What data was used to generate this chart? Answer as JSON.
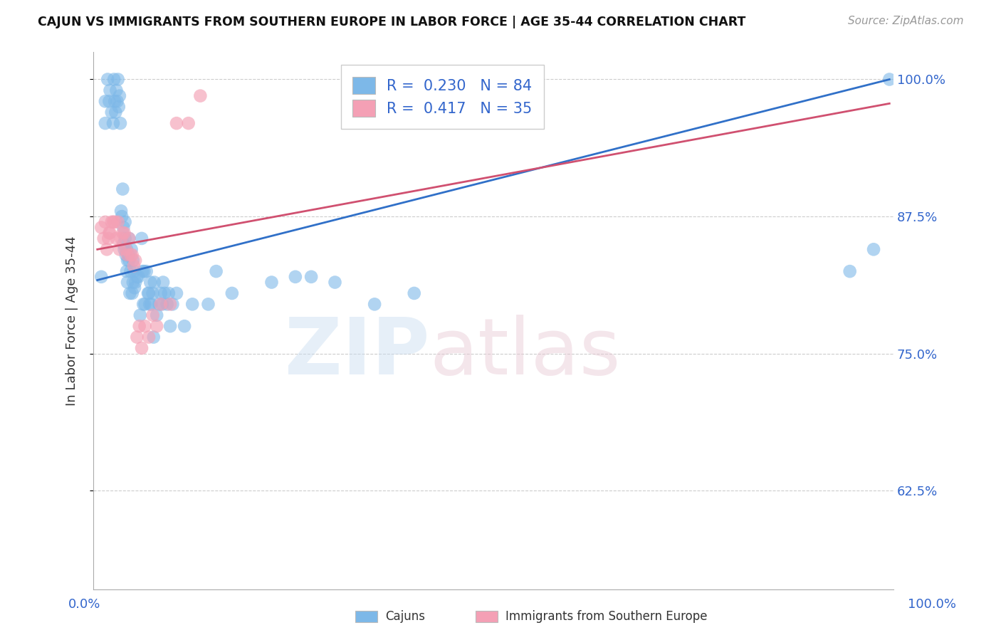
{
  "title": "CAJUN VS IMMIGRANTS FROM SOUTHERN EUROPE IN LABOR FORCE | AGE 35-44 CORRELATION CHART",
  "source": "Source: ZipAtlas.com",
  "ylabel": "In Labor Force | Age 35-44",
  "ytick_labels": [
    "62.5%",
    "75.0%",
    "87.5%",
    "100.0%"
  ],
  "ytick_values": [
    0.625,
    0.75,
    0.875,
    1.0
  ],
  "xlim": [
    -0.005,
    1.005
  ],
  "ylim": [
    0.535,
    1.025
  ],
  "cajun_color": "#7DB8E8",
  "cajun_edge_color": "#5090C8",
  "immigrant_color": "#F4A0B5",
  "immigrant_edge_color": "#D06080",
  "cajun_line_color": "#3070C8",
  "immigrant_line_color": "#D05070",
  "legend_R_cajun": "0.230",
  "legend_N_cajun": "84",
  "legend_R_immigrant": "0.417",
  "legend_N_immigrant": "35",
  "cajun_points_x": [
    0.005,
    0.01,
    0.01,
    0.013,
    0.015,
    0.016,
    0.018,
    0.02,
    0.021,
    0.022,
    0.023,
    0.024,
    0.025,
    0.026,
    0.027,
    0.028,
    0.029,
    0.03,
    0.031,
    0.032,
    0.033,
    0.033,
    0.034,
    0.035,
    0.035,
    0.036,
    0.037,
    0.037,
    0.038,
    0.038,
    0.039,
    0.04,
    0.04,
    0.041,
    0.042,
    0.043,
    0.044,
    0.045,
    0.045,
    0.046,
    0.047,
    0.048,
    0.05,
    0.052,
    0.054,
    0.056,
    0.057,
    0.058,
    0.059,
    0.06,
    0.062,
    0.064,
    0.065,
    0.066,
    0.067,
    0.068,
    0.07,
    0.071,
    0.072,
    0.075,
    0.078,
    0.08,
    0.082,
    0.083,
    0.085,
    0.088,
    0.09,
    0.092,
    0.095,
    0.1,
    0.11,
    0.12,
    0.14,
    0.15,
    0.17,
    0.22,
    0.25,
    0.27,
    0.3,
    0.35,
    0.4,
    0.95,
    0.98,
    1.0
  ],
  "cajun_points_y": [
    0.82,
    0.96,
    0.98,
    1.0,
    0.98,
    0.99,
    0.97,
    0.96,
    1.0,
    0.98,
    0.97,
    0.99,
    0.98,
    1.0,
    0.975,
    0.985,
    0.96,
    0.88,
    0.875,
    0.9,
    0.85,
    0.865,
    0.845,
    0.855,
    0.87,
    0.84,
    0.825,
    0.845,
    0.815,
    0.835,
    0.84,
    0.835,
    0.855,
    0.805,
    0.825,
    0.845,
    0.805,
    0.815,
    0.835,
    0.825,
    0.81,
    0.815,
    0.82,
    0.82,
    0.785,
    0.855,
    0.825,
    0.795,
    0.825,
    0.795,
    0.825,
    0.805,
    0.805,
    0.795,
    0.815,
    0.795,
    0.805,
    0.765,
    0.815,
    0.785,
    0.795,
    0.805,
    0.795,
    0.815,
    0.805,
    0.795,
    0.805,
    0.775,
    0.795,
    0.805,
    0.775,
    0.795,
    0.795,
    0.825,
    0.805,
    0.815,
    0.82,
    0.82,
    0.815,
    0.795,
    0.805,
    0.825,
    0.845,
    1.0
  ],
  "immigrant_points_x": [
    0.005,
    0.008,
    0.01,
    0.012,
    0.014,
    0.015,
    0.016,
    0.018,
    0.02,
    0.022,
    0.024,
    0.026,
    0.028,
    0.03,
    0.032,
    0.034,
    0.036,
    0.038,
    0.04,
    0.042,
    0.044,
    0.046,
    0.048,
    0.05,
    0.053,
    0.056,
    0.06,
    0.065,
    0.07,
    0.075,
    0.08,
    0.092,
    0.1,
    0.115,
    0.13
  ],
  "immigrant_points_y": [
    0.865,
    0.855,
    0.87,
    0.845,
    0.855,
    0.86,
    0.86,
    0.87,
    0.87,
    0.87,
    0.855,
    0.87,
    0.845,
    0.855,
    0.86,
    0.86,
    0.845,
    0.84,
    0.855,
    0.84,
    0.84,
    0.83,
    0.835,
    0.765,
    0.775,
    0.755,
    0.775,
    0.765,
    0.785,
    0.775,
    0.795,
    0.795,
    0.96,
    0.96,
    0.985
  ],
  "cajun_line_y_at_0": 0.817,
  "cajun_line_y_at_1": 1.0,
  "immigrant_line_y_at_0": 0.845,
  "immigrant_line_y_at_1": 0.978,
  "grid_color": "#CCCCCC",
  "axis_color": "#AAAAAA",
  "label_color_blue": "#3366CC",
  "text_color": "#333333"
}
